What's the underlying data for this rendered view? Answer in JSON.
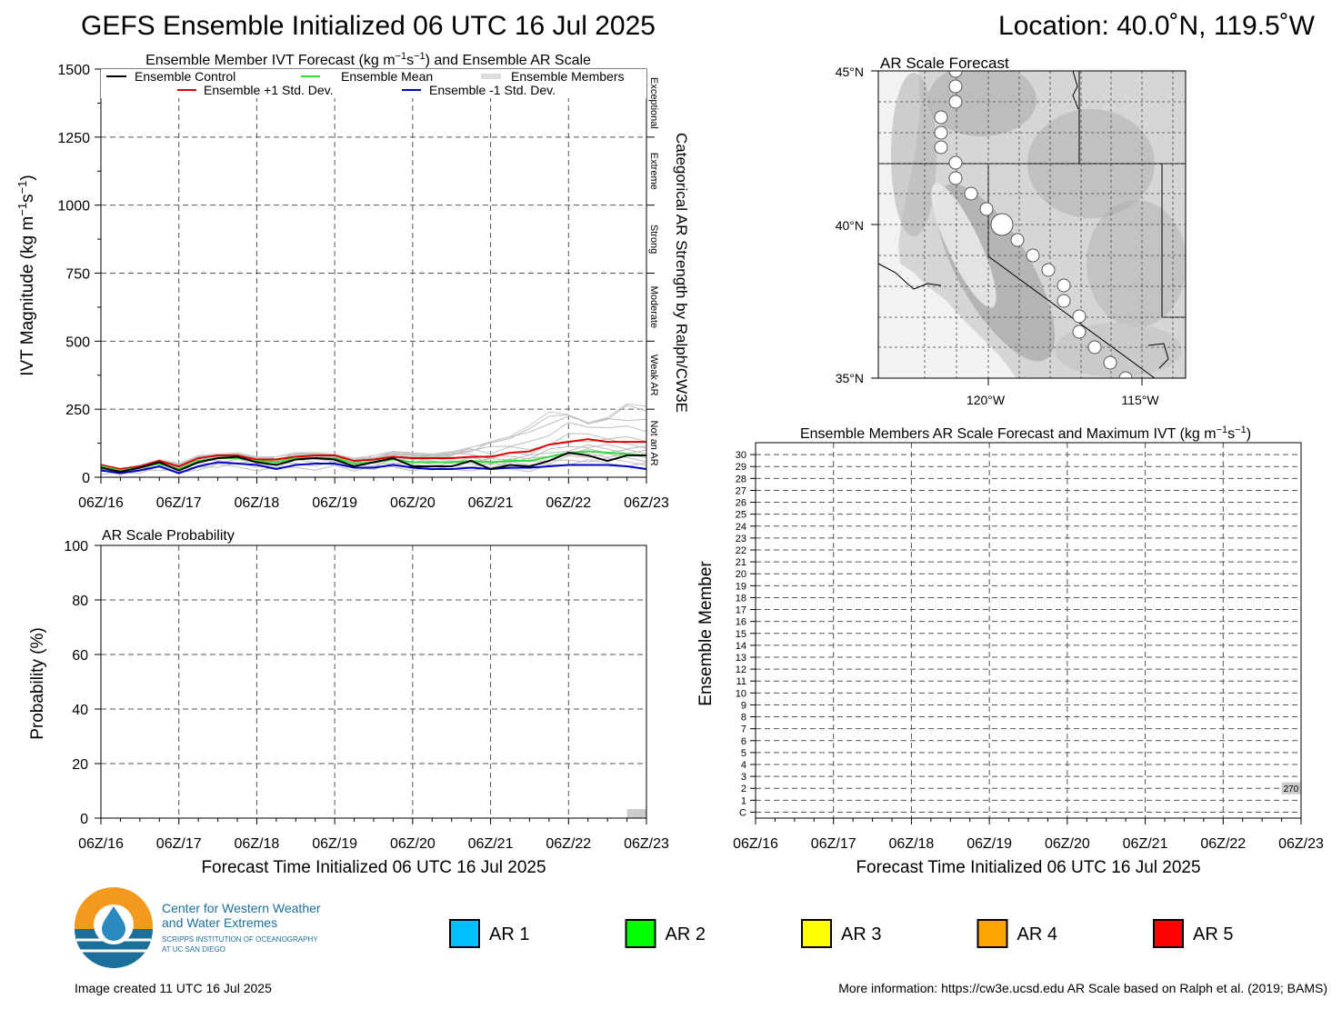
{
  "header": {
    "title": "GEFS Ensemble Initialized 06 UTC 16 Jul 2025",
    "location": "Location: 40.0˚N, 119.5˚W"
  },
  "ivt_panel": {
    "title": "Ensemble Member IVT Forecast (kg m",
    "title_sup1": "−1",
    "title_mid": "s",
    "title_sup2": "−1",
    "title_end": ") and Ensemble AR Scale",
    "ylabel": "IVT Magnitude (kg m",
    "ylabel_sup1": "−1",
    "ylabel_mid": "s",
    "ylabel_sup2": "−1",
    "ylabel_end": ")",
    "right_label": "Categorical AR Strength by Ralph/CW3E",
    "categories": [
      "Exceptional",
      "Extreme",
      "Strong",
      "Moderate",
      "Weak AR",
      "Not an AR"
    ],
    "legend": {
      "control": "Ensemble Control",
      "mean": "Ensemble Mean",
      "members": "Ensemble Members",
      "plus": "Ensemble +1 Std. Dev.",
      "minus": "Ensemble -1 Std. Dev."
    }
  },
  "prob_panel": {
    "title": "AR Scale Probability",
    "ylabel": "Probability (%)",
    "xlabel": "Forecast Time Initialized 06 UTC 16 Jul 2025"
  },
  "map_panel": {
    "title": "AR Scale Forecast",
    "lat_labels": [
      "45°N",
      "40°N",
      "35°N"
    ],
    "lon_labels": [
      "120°W",
      "115°W"
    ]
  },
  "members_panel": {
    "title": "Ensemble Members AR Scale Forecast and Maximum IVT (kg m",
    "title_sup1": "−1",
    "title_mid": "s",
    "title_sup2": "−1",
    "title_end": ")",
    "ylabel": "Ensemble Member",
    "xlabel": "Forecast Time Initialized 06 UTC 16 Jul 2025",
    "annotation": "270"
  },
  "legend_ar": {
    "items": [
      {
        "label": "AR 1",
        "color": "#00bfff"
      },
      {
        "label": "AR 2",
        "color": "#00ff00"
      },
      {
        "label": "AR 3",
        "color": "#ffff00"
      },
      {
        "label": "AR 4",
        "color": "#ffa500"
      },
      {
        "label": "AR 5",
        "color": "#ff0000"
      }
    ]
  },
  "logo": {
    "line1": "Center for Western Weather",
    "line2": "and Water Extremes",
    "line3": "SCRIPPS INSTITUTION OF OCEANOGRAPHY",
    "line4": "AT UC SAN DIEGO"
  },
  "footer": {
    "created": "Image created 11 UTC 16 Jul 2025",
    "info": "More information: https://cw3e.ucsd.edu AR Scale based on Ralph et al. (2019; BAMS)"
  },
  "chart_data": [
    {
      "type": "line",
      "title": "Ensemble Member IVT Forecast (kg m−1s−1) and Ensemble AR Scale",
      "ylabel": "IVT Magnitude (kg m−1s−1)",
      "ylim": [
        0,
        1500
      ],
      "yticks": [
        0,
        250,
        500,
        750,
        1000,
        1250,
        1500
      ],
      "xlim_hours": [
        0,
        168
      ],
      "xticks": [
        "06Z/16",
        "06Z/17",
        "06Z/18",
        "06Z/19",
        "06Z/20",
        "06Z/21",
        "06Z/22",
        "06Z/23"
      ],
      "x_hours": [
        0,
        6,
        12,
        18,
        24,
        30,
        36,
        42,
        48,
        54,
        60,
        66,
        72,
        78,
        84,
        90,
        96,
        102,
        108,
        114,
        120,
        126,
        132,
        138,
        144,
        150,
        156,
        162,
        168
      ],
      "series": [
        {
          "name": "Ensemble Control",
          "color": "#000000",
          "values": [
            35,
            20,
            35,
            55,
            25,
            55,
            70,
            75,
            55,
            45,
            65,
            70,
            65,
            40,
            55,
            70,
            40,
            40,
            40,
            60,
            30,
            45,
            40,
            60,
            90,
            80,
            60,
            80,
            80
          ]
        },
        {
          "name": "Ensemble Mean",
          "color": "#33dd33",
          "values": [
            40,
            25,
            35,
            50,
            30,
            60,
            70,
            70,
            60,
            55,
            70,
            70,
            70,
            50,
            55,
            65,
            55,
            55,
            55,
            60,
            55,
            60,
            60,
            75,
            90,
            95,
            90,
            85,
            80
          ]
        },
        {
          "name": "Ensemble +1 Std. Dev.",
          "color": "#dd0000",
          "values": [
            45,
            30,
            40,
            60,
            40,
            70,
            80,
            80,
            65,
            65,
            75,
            80,
            80,
            60,
            65,
            75,
            70,
            70,
            70,
            75,
            75,
            90,
            95,
            120,
            130,
            140,
            130,
            130,
            130
          ]
        },
        {
          "name": "Ensemble -1 Std. Dev.",
          "color": "#0000cc",
          "values": [
            25,
            15,
            25,
            40,
            15,
            40,
            55,
            50,
            45,
            30,
            45,
            50,
            50,
            35,
            35,
            45,
            35,
            30,
            30,
            35,
            30,
            35,
            35,
            40,
            45,
            45,
            45,
            40,
            30
          ]
        }
      ],
      "members_max": [
        40,
        30,
        45,
        65,
        50,
        80,
        85,
        90,
        75,
        75,
        90,
        90,
        85,
        70,
        80,
        95,
        90,
        85,
        95,
        110,
        130,
        150,
        190,
        240,
        230,
        200,
        220,
        270,
        260
      ]
    },
    {
      "type": "bar",
      "title": "AR Scale Probability",
      "ylabel": "Probability (%)",
      "ylim": [
        0,
        100
      ],
      "yticks": [
        0,
        20,
        40,
        60,
        80,
        100
      ],
      "xticks": [
        "06Z/16",
        "06Z/17",
        "06Z/18",
        "06Z/19",
        "06Z/20",
        "06Z/21",
        "06Z/22",
        "06Z/23"
      ],
      "bars": [
        {
          "start_hour": 162,
          "end_hour": 168,
          "value": 3.3,
          "color": "#cccccc"
        }
      ]
    },
    {
      "type": "heatmap",
      "title": "Ensemble Members AR Scale Forecast and Maximum IVT (kg m−1s−1)",
      "ylabel": "Ensemble Member",
      "rows": [
        "C",
        "1",
        "2",
        "3",
        "4",
        "5",
        "6",
        "7",
        "8",
        "9",
        "10",
        "11",
        "12",
        "13",
        "14",
        "15",
        "16",
        "17",
        "18",
        "19",
        "20",
        "21",
        "22",
        "23",
        "24",
        "25",
        "26",
        "27",
        "28",
        "29",
        "30"
      ],
      "xticks": [
        "06Z/16",
        "06Z/17",
        "06Z/18",
        "06Z/19",
        "06Z/20",
        "06Z/21",
        "06Z/22",
        "06Z/23"
      ],
      "cells": [
        {
          "row": "2",
          "start_hour": 162,
          "end_hour": 168,
          "color": "#cccccc",
          "max_ivt": 270
        }
      ]
    }
  ]
}
